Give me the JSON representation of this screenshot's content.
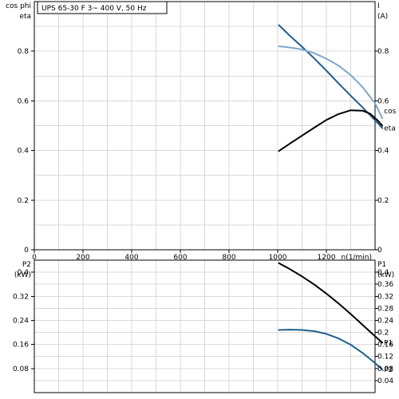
{
  "chart_data": [
    {
      "type": "line",
      "title": "UPS 65-30 F    3~ 400 V, 50 Hz",
      "xlabel": "n(1/min)",
      "ylabel_left": [
        "cos phi",
        "eta"
      ],
      "ylabel_right": [
        "I",
        "(A)"
      ],
      "xlim": [
        0,
        1400
      ],
      "ylim": [
        0,
        1.0
      ],
      "x_ticks": [
        0,
        200,
        400,
        600,
        800,
        1000,
        1200
      ],
      "y_ticks_left": [
        0,
        0.2,
        0.4,
        0.6,
        0.8
      ],
      "y_ticks_right": [
        0,
        0.2,
        0.4,
        0.6,
        0.8
      ],
      "grid": true,
      "series": [
        {
          "name": "",
          "color": "#1f5f8b",
          "x": [
            1005,
            1050,
            1100,
            1150,
            1200,
            1250,
            1300,
            1350,
            1400,
            1430
          ],
          "y": [
            0.905,
            0.862,
            0.818,
            0.771,
            0.722,
            0.67,
            0.621,
            0.572,
            0.522,
            0.49
          ]
        },
        {
          "name": "cos phi",
          "color": "#7fa7c9",
          "x": [
            1005,
            1050,
            1100,
            1150,
            1200,
            1250,
            1300,
            1350,
            1400,
            1430
          ],
          "y": [
            0.82,
            0.815,
            0.807,
            0.792,
            0.77,
            0.742,
            0.704,
            0.654,
            0.59,
            0.53
          ]
        },
        {
          "name": "eta",
          "color": "#000000",
          "x": [
            1005,
            1050,
            1100,
            1150,
            1200,
            1250,
            1300,
            1350,
            1380,
            1410,
            1430
          ],
          "y": [
            0.398,
            0.428,
            0.46,
            0.492,
            0.523,
            0.547,
            0.562,
            0.56,
            0.548,
            0.522,
            0.5
          ]
        }
      ]
    },
    {
      "type": "line",
      "xlim": [
        0,
        1400
      ],
      "ylim": [
        0,
        0.44
      ],
      "ylabel_left": [
        "P2",
        "(kW)"
      ],
      "ylabel_right": [
        "P1",
        "(kW)"
      ],
      "y_ticks_left": [
        0.08,
        0.16,
        0.24,
        0.32,
        0.4
      ],
      "y_ticks_right": [
        0.04,
        0.08,
        0.12,
        0.16,
        0.2,
        0.24,
        0.28,
        0.32,
        0.36,
        0.4
      ],
      "grid": true,
      "series": [
        {
          "name": "P1",
          "color": "#000000",
          "x": [
            1005,
            1050,
            1100,
            1150,
            1200,
            1250,
            1300,
            1350,
            1400,
            1430
          ],
          "y": [
            0.43,
            0.41,
            0.386,
            0.359,
            0.329,
            0.296,
            0.261,
            0.224,
            0.187,
            0.166
          ]
        },
        {
          "name": "P2",
          "color": "#1f5f8b",
          "x": [
            1005,
            1050,
            1100,
            1150,
            1200,
            1250,
            1300,
            1350,
            1400,
            1430
          ],
          "y": [
            0.208,
            0.209,
            0.208,
            0.204,
            0.195,
            0.18,
            0.159,
            0.131,
            0.098,
            0.077
          ]
        }
      ]
    }
  ]
}
